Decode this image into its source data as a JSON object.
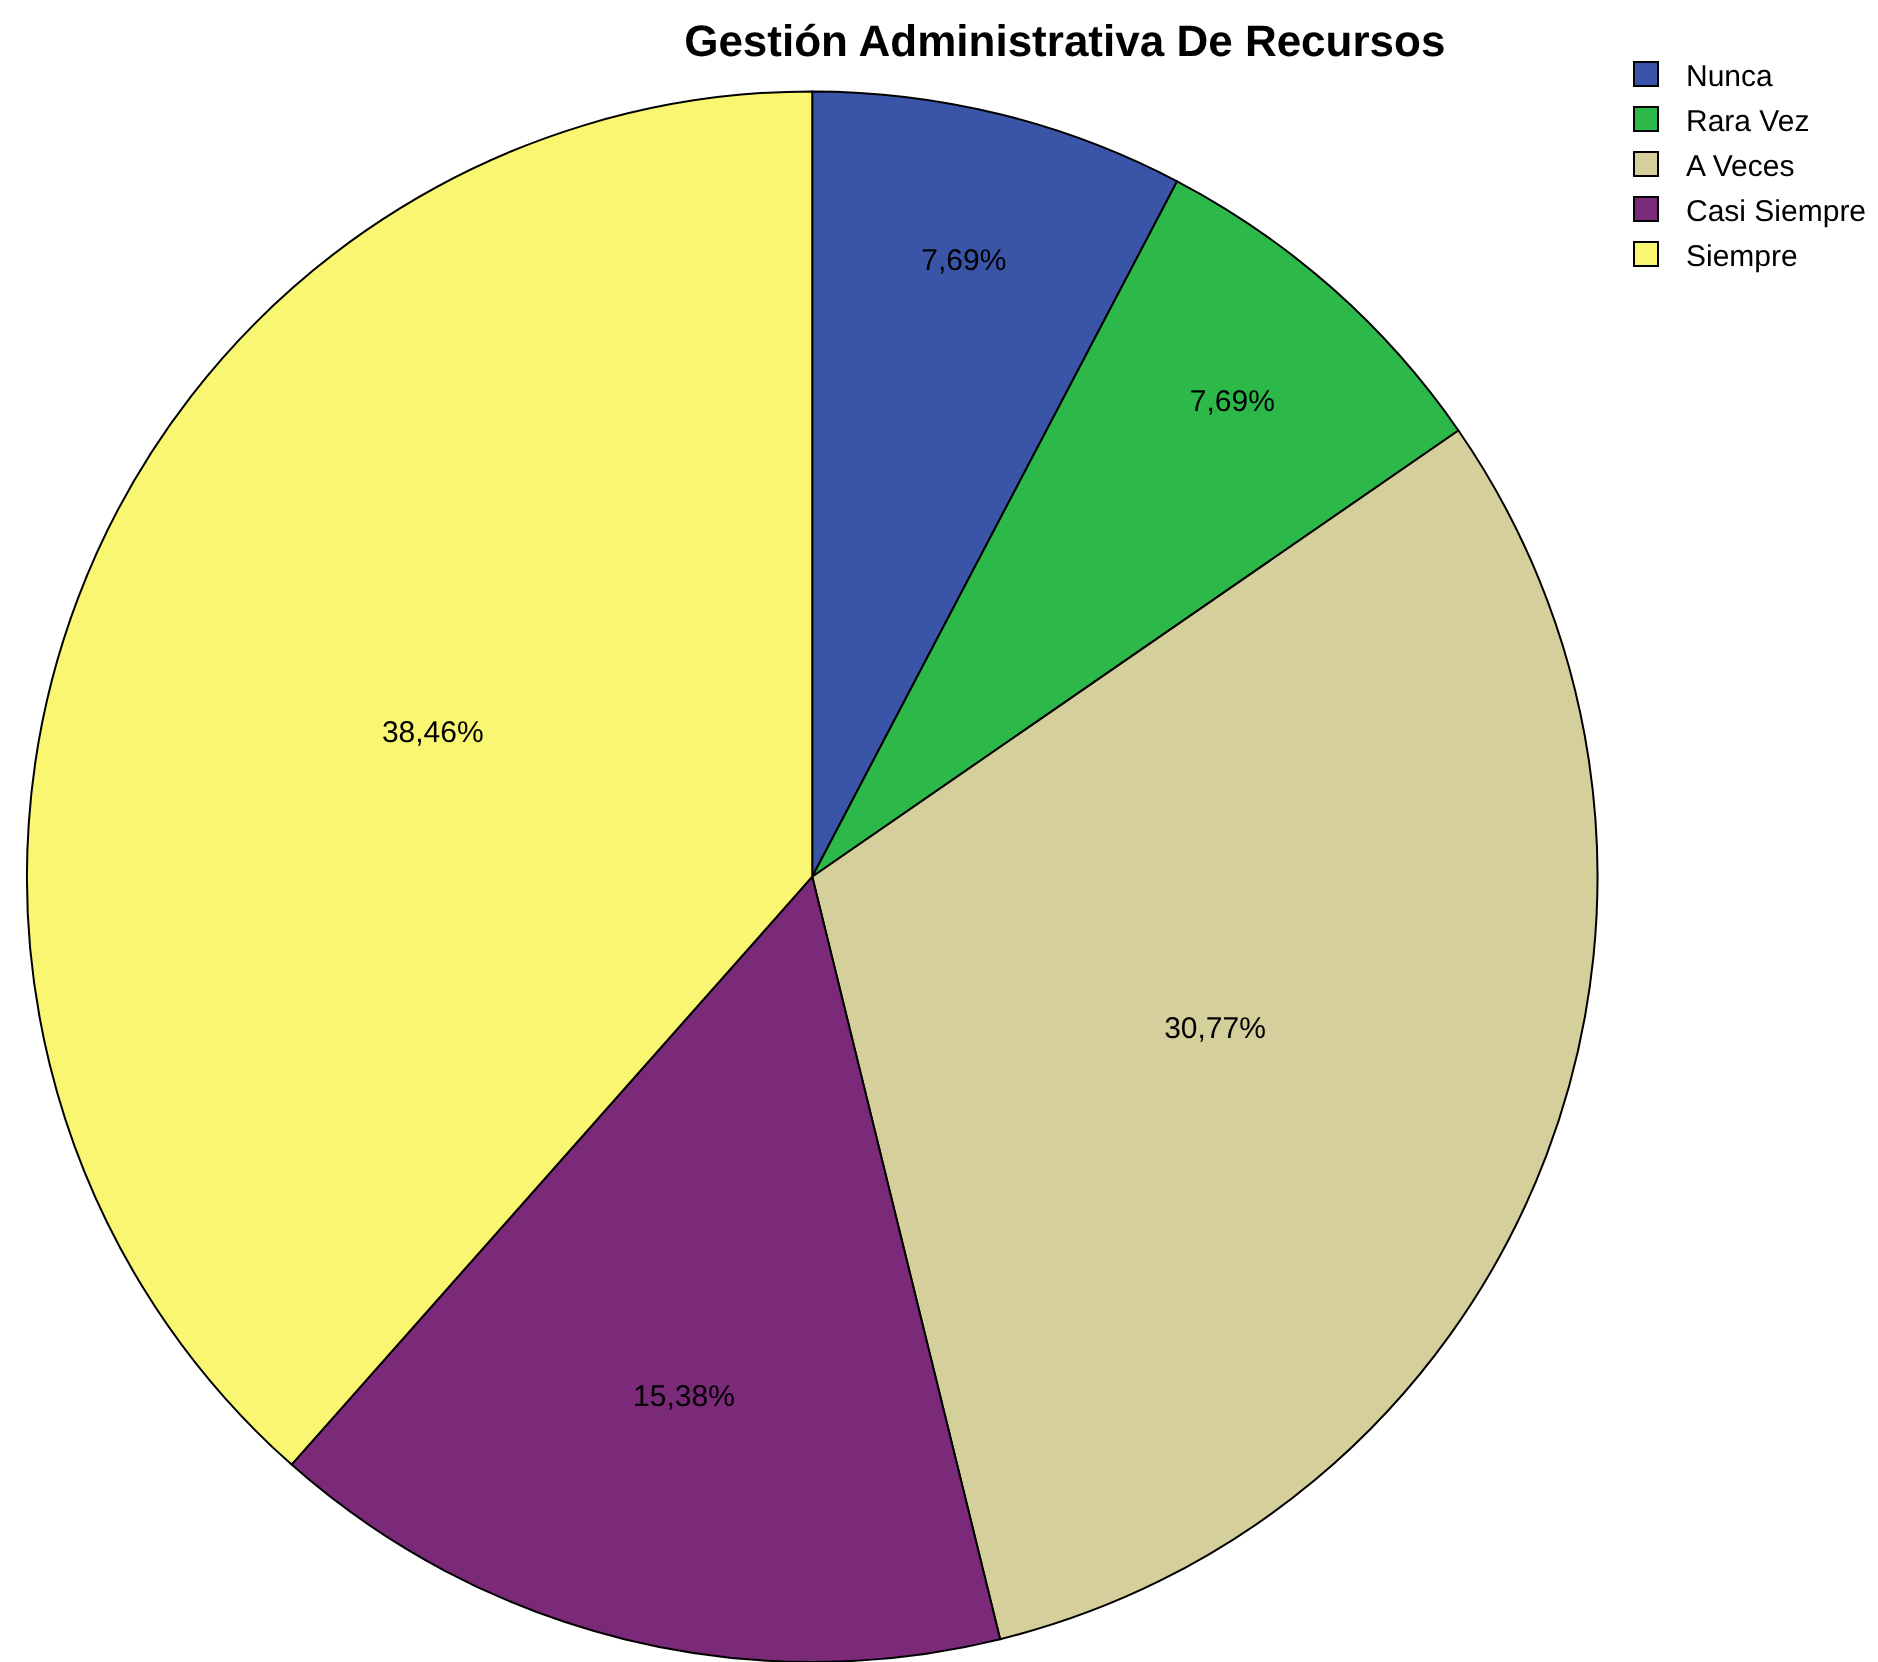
{
  "chart_data": {
    "type": "pie",
    "title": "Gestión Administrativa De Recursos",
    "categories": [
      "Nunca",
      "Rara Vez",
      "A Veces",
      "Casi Siempre",
      "Siempre"
    ],
    "values": [
      7.69,
      7.69,
      30.77,
      15.38,
      38.46
    ],
    "value_labels": [
      "7,69%",
      "7,69%",
      "30,77%",
      "15,38%",
      "38,46%"
    ],
    "colors": [
      "#3a55a8",
      "#2db84a",
      "#d4cf9b",
      "#7b2a7a",
      "#f9f671"
    ],
    "legend": "top right"
  }
}
